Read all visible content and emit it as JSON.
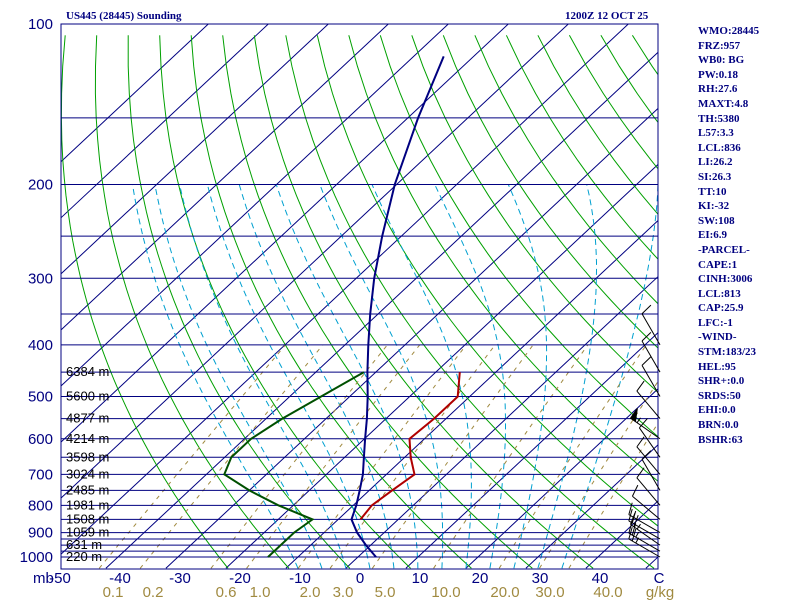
{
  "title_left": "US445 (28445) Sounding",
  "title_right": "1200Z 12 OCT 25",
  "colors": {
    "frame": "#000080",
    "isobar": "#000080",
    "isotherm": "#000080",
    "dry_adiabat": "#00a000",
    "moist_adiabat": "#00a0d0",
    "mixing_ratio": "#a08a40",
    "temperature": "#000080",
    "dewpoint": "#005000",
    "parcel": "#b00000",
    "wind": "#000000"
  },
  "chart_data": {
    "type": "skew-t",
    "xlabel": "C",
    "mix_unit": "g/kg",
    "pressure_label_unit": "mb",
    "pressure_range": [
      1000,
      100
    ],
    "temperature_range": [
      -50,
      50
    ],
    "isobars": [
      100,
      150,
      200,
      250,
      300,
      350,
      400,
      450,
      500,
      550,
      600,
      650,
      700,
      750,
      800,
      850,
      900,
      925,
      950,
      975,
      1000
    ],
    "pressure_labels": [
      "100",
      "200",
      "300",
      "400",
      "500",
      "600",
      "700",
      "800",
      "900",
      "1000"
    ],
    "temp_ticks": [
      "-50",
      "-40",
      "-30",
      "-20",
      "-10",
      "0",
      "10",
      "20",
      "30",
      "40"
    ],
    "mixing_ratio_labels": [
      "0.1",
      "0.2",
      "0.6",
      "1.0",
      "2.0",
      "3.0",
      "5.0",
      "10.0",
      "20.0",
      "30.0",
      "40.0"
    ],
    "height_labels": [
      {
        "pressure": 450,
        "text": "6384 m"
      },
      {
        "pressure": 500,
        "text": "5600 m"
      },
      {
        "pressure": 550,
        "text": "4877 m"
      },
      {
        "pressure": 600,
        "text": "4214 m"
      },
      {
        "pressure": 650,
        "text": "3598 m"
      },
      {
        "pressure": 700,
        "text": "3024 m"
      },
      {
        "pressure": 750,
        "text": "2485 m"
      },
      {
        "pressure": 800,
        "text": "1981 m"
      },
      {
        "pressure": 850,
        "text": "1508 m"
      },
      {
        "pressure": 900,
        "text": "1059 m"
      },
      {
        "pressure": 950,
        "text": "631 m"
      },
      {
        "pressure": 1000,
        "text": "220 m"
      }
    ],
    "series": [
      {
        "name": "temperature",
        "points": [
          {
            "p": 1000,
            "t": 3.0
          },
          {
            "p": 950,
            "t": -0.8
          },
          {
            "p": 900,
            "t": -4.5
          },
          {
            "p": 850,
            "t": -7.8
          },
          {
            "p": 800,
            "t": -9.5
          },
          {
            "p": 750,
            "t": -11.6
          },
          {
            "p": 700,
            "t": -13.9
          },
          {
            "p": 650,
            "t": -16.8
          },
          {
            "p": 600,
            "t": -19.9
          },
          {
            "p": 550,
            "t": -23.2
          },
          {
            "p": 500,
            "t": -27.0
          },
          {
            "p": 450,
            "t": -31.4
          },
          {
            "p": 400,
            "t": -36.1
          },
          {
            "p": 350,
            "t": -41.3
          },
          {
            "p": 300,
            "t": -47.0
          },
          {
            "p": 250,
            "t": -53.2
          },
          {
            "p": 200,
            "t": -60.3
          },
          {
            "p": 150,
            "t": -68.3
          },
          {
            "p": 115,
            "t": -75.0
          }
        ]
      },
      {
        "name": "dewpoint",
        "points": [
          {
            "p": 1000,
            "t": -15.0
          },
          {
            "p": 950,
            "t": -15.0
          },
          {
            "p": 900,
            "t": -15.0
          },
          {
            "p": 850,
            "t": -14.3
          },
          {
            "p": 800,
            "t": -22.5
          },
          {
            "p": 750,
            "t": -30.0
          },
          {
            "p": 700,
            "t": -37.0
          },
          {
            "p": 650,
            "t": -38.9
          },
          {
            "p": 600,
            "t": -38.9
          },
          {
            "p": 550,
            "t": -37.3
          },
          {
            "p": 500,
            "t": -34.8
          },
          {
            "p": 450,
            "t": -32.0
          }
        ]
      },
      {
        "name": "parcel",
        "points": [
          {
            "p": 850,
            "t": -6.3
          },
          {
            "p": 800,
            "t": -6.9
          },
          {
            "p": 750,
            "t": -6.2
          },
          {
            "p": 700,
            "t": -5.3
          },
          {
            "p": 650,
            "t": -9.0
          },
          {
            "p": 600,
            "t": -12.5
          },
          {
            "p": 550,
            "t": -12.0
          },
          {
            "p": 500,
            "t": -12.0
          },
          {
            "p": 450,
            "t": -16.0
          }
        ]
      }
    ],
    "wind_barbs": [
      {
        "p": 1000,
        "dir": 300,
        "spd": 25
      },
      {
        "p": 975,
        "dir": 300,
        "spd": 25
      },
      {
        "p": 950,
        "dir": 305,
        "spd": 25
      },
      {
        "p": 925,
        "dir": 300,
        "spd": 20
      },
      {
        "p": 900,
        "dir": 300,
        "spd": 10
      },
      {
        "p": 850,
        "dir": 310,
        "spd": 10
      },
      {
        "p": 800,
        "dir": 320,
        "spd": 10
      },
      {
        "p": 750,
        "dir": 330,
        "spd": 10
      },
      {
        "p": 700,
        "dir": 320,
        "spd": 10
      },
      {
        "p": 650,
        "dir": 325,
        "spd": 10
      },
      {
        "p": 600,
        "dir": 305,
        "spd": 55
      },
      {
        "p": 550,
        "dir": 320,
        "spd": 10
      },
      {
        "p": 500,
        "dir": 330,
        "spd": 10
      },
      {
        "p": 450,
        "dir": 330,
        "spd": 10
      },
      {
        "p": 400,
        "dir": 330,
        "spd": 10
      }
    ]
  },
  "indices": [
    "WMO:28445",
    "FRZ:957",
    "WB0: BG",
    "PW:0.18",
    "RH:27.6",
    "MAXT:4.8",
    "TH:5380",
    "L57:3.3",
    "LCL:836",
    "LI:26.2",
    "SI:26.3",
    "TT:10",
    "KI:-32",
    "SW:108",
    "EI:6.9",
    "-PARCEL-",
    "CAPE:1",
    "CINH:3006",
    "LCL:813",
    "CAP:25.9",
    "LFC:-1",
    "-WIND-",
    "STM:183/23",
    "HEL:95",
    "SHR+:0.0",
    "SRDS:50",
    "EHI:0.0",
    "BRN:0.0",
    "BSHR:63"
  ]
}
